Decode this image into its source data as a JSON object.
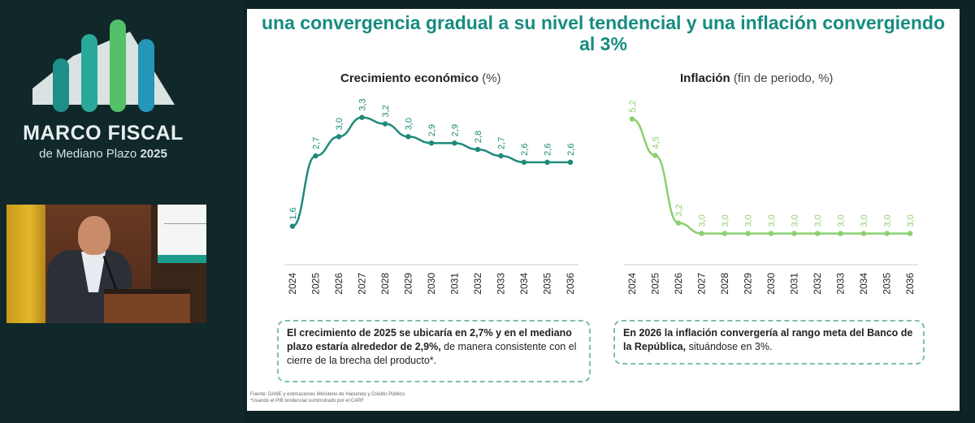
{
  "branding": {
    "title": "MARCO FISCAL",
    "subtitle_prefix": "de Mediano Plazo",
    "subtitle_year": "2025"
  },
  "slide": {
    "headline": "una convergencia gradual a su nivel tendencial y una inflación convergiendo al 3%",
    "box_left": {
      "bold": "El crecimiento de 2025 se ubicaría en 2,7% y en el mediano plazo estaría alrededor de 2,9%,",
      "rest": "de manera consistente con el cierre de la brecha del producto*."
    },
    "box_right": {
      "bold": "En 2026 la inflación convergería al rango meta del Banco de la República,",
      "rest": "situándose en 3%."
    },
    "source_line1": "Fuente: DANE y estimaciones Ministerio de Hacienda y Crédito Público.",
    "source_line2": "*Usando el PIB tendencial suministrado por el CARF"
  },
  "colors": {
    "growth": "#1f8a7a",
    "inflation": "#8cd06e",
    "headline": "#178c80"
  },
  "chart_data": [
    {
      "type": "line",
      "title": "Crecimiento económico",
      "title_unit": "(%)",
      "categories": [
        "2024",
        "2025",
        "2026",
        "2027",
        "2028",
        "2029",
        "2030",
        "2031",
        "2032",
        "2033",
        "2034",
        "2035",
        "2036"
      ],
      "values": [
        1.6,
        2.7,
        3.0,
        3.3,
        3.2,
        3.0,
        2.9,
        2.9,
        2.8,
        2.7,
        2.6,
        2.6,
        2.6
      ],
      "labels": [
        "1,6",
        "2,7",
        "3,0",
        "3,3",
        "3,2",
        "3,0",
        "2,9",
        "2,9",
        "2,8",
        "2,7",
        "2,6",
        "2,6",
        "2,6"
      ],
      "ylim": [
        1.0,
        3.6
      ]
    },
    {
      "type": "line",
      "title": "Inflación",
      "title_unit": "(fin de periodo, %)",
      "categories": [
        "2024",
        "2025",
        "2026",
        "2027",
        "2028",
        "2029",
        "2030",
        "2031",
        "2032",
        "2033",
        "2034",
        "2035",
        "2036"
      ],
      "values": [
        5.2,
        4.5,
        3.2,
        3.0,
        3.0,
        3.0,
        3.0,
        3.0,
        3.0,
        3.0,
        3.0,
        3.0,
        3.0
      ],
      "labels": [
        "5,2",
        "4,5",
        "3,2",
        "3,0",
        "3,0",
        "3,0",
        "3,0",
        "3,0",
        "3,0",
        "3,0",
        "3,0",
        "3,0",
        "3,0"
      ],
      "ylim": [
        2.4,
        5.6
      ]
    }
  ]
}
